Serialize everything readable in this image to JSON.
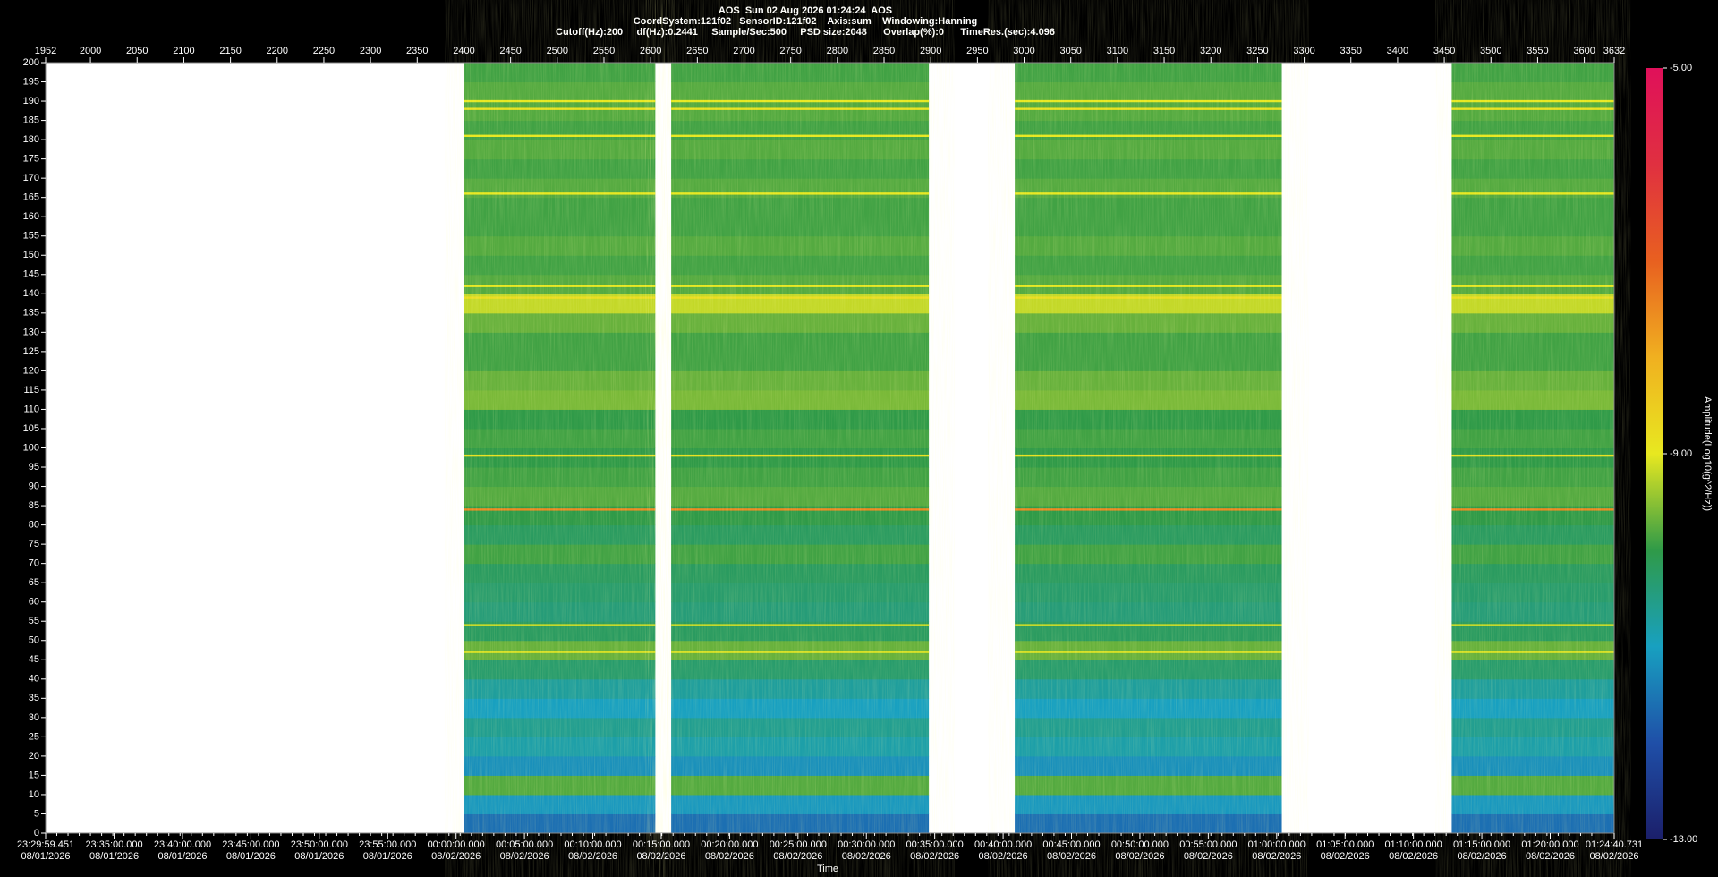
{
  "chart_data": {
    "type": "spectrogram",
    "title": "AOS  Sun 02 Aug 2026 01:24:24  AOS",
    "subtitle": "CoordSystem:121f02   SensorID:121f02    Axis:sum    Windowing:Hanning",
    "subtitle2": "Cutoff(Hz):200     df(Hz):0.2441     Sample/Sec:500     PSD size:2048      Overlap(%):0      TimeRes.(sec):4.096",
    "xlabel": "Time",
    "colorbar_label": "Amplitude(Log10(g^2/Hz))",
    "xlim": [
      1952,
      3632
    ],
    "xticks": [
      1952,
      2000,
      2050,
      2100,
      2150,
      2200,
      2250,
      2300,
      2350,
      2400,
      2450,
      2500,
      2550,
      2600,
      2650,
      2700,
      2750,
      2800,
      2850,
      2900,
      2950,
      3000,
      3050,
      3100,
      3150,
      3200,
      3250,
      3300,
      3350,
      3400,
      3450,
      3500,
      3550,
      3600,
      3632
    ],
    "time_ticks": [
      {
        "value": 1952,
        "label": "23:29:59.451",
        "date": "08/01/2026"
      },
      {
        "value": 2025.38,
        "label": "23:35:00.000",
        "date": "08/01/2026"
      },
      {
        "value": 2098.62,
        "label": "23:40:00.000",
        "date": "08/01/2026"
      },
      {
        "value": 2171.86,
        "label": "23:45:00.000",
        "date": "08/01/2026"
      },
      {
        "value": 2245.1,
        "label": "23:50:00.000",
        "date": "08/01/2026"
      },
      {
        "value": 2318.35,
        "label": "23:55:00.000",
        "date": "08/01/2026"
      },
      {
        "value": 2391.59,
        "label": "00:00:00.000",
        "date": "08/02/2026"
      },
      {
        "value": 2464.83,
        "label": "00:05:00.000",
        "date": "08/02/2026"
      },
      {
        "value": 2538.07,
        "label": "00:10:00.000",
        "date": "08/02/2026"
      },
      {
        "value": 2611.32,
        "label": "00:15:00.000",
        "date": "08/02/2026"
      },
      {
        "value": 2684.56,
        "label": "00:20:00.000",
        "date": "08/02/2026"
      },
      {
        "value": 2757.8,
        "label": "00:25:00.000",
        "date": "08/02/2026"
      },
      {
        "value": 2831.04,
        "label": "00:30:00.000",
        "date": "08/02/2026"
      },
      {
        "value": 2904.28,
        "label": "00:35:00.000",
        "date": "08/02/2026"
      },
      {
        "value": 2977.53,
        "label": "00:40:00.000",
        "date": "08/02/2026"
      },
      {
        "value": 3050.77,
        "label": "00:45:00.000",
        "date": "08/02/2026"
      },
      {
        "value": 3124.01,
        "label": "00:50:00.000",
        "date": "08/02/2026"
      },
      {
        "value": 3197.25,
        "label": "00:55:00.000",
        "date": "08/02/2026"
      },
      {
        "value": 3270.5,
        "label": "01:00:00.000",
        "date": "08/02/2026"
      },
      {
        "value": 3343.74,
        "label": "01:05:00.000",
        "date": "08/02/2026"
      },
      {
        "value": 3416.98,
        "label": "01:10:00.000",
        "date": "08/02/2026"
      },
      {
        "value": 3490.22,
        "label": "01:15:00.000",
        "date": "08/02/2026"
      },
      {
        "value": 3563.47,
        "label": "01:20:00.000",
        "date": "08/02/2026"
      },
      {
        "value": 3632,
        "label": "01:24:40.731",
        "date": "08/02/2026"
      }
    ],
    "ylim": [
      0,
      200
    ],
    "yticks": [
      0,
      5,
      10,
      15,
      20,
      25,
      30,
      35,
      40,
      45,
      50,
      55,
      60,
      65,
      70,
      75,
      80,
      85,
      90,
      95,
      100,
      105,
      110,
      115,
      120,
      125,
      130,
      135,
      140,
      145,
      150,
      155,
      160,
      165,
      170,
      175,
      180,
      185,
      190,
      195,
      200
    ],
    "clim": [
      -13,
      -5
    ],
    "cticks": [
      {
        "value": -13,
        "label": "-13.00"
      },
      {
        "value": -9,
        "label": "-9.00"
      },
      {
        "value": -5,
        "label": "-5.00"
      }
    ],
    "colormap": [
      "#1b1f6a",
      "#1f4fa8",
      "#18a0c0",
      "#2f9a48",
      "#e8e820",
      "#f0b020",
      "#e86020",
      "#e03040",
      "#e0105a"
    ],
    "segments": [
      [
        2400,
        2605
      ],
      [
        2622,
        2898
      ],
      [
        2990,
        3276
      ],
      [
        3458,
        3632
      ]
    ],
    "bins": [
      0,
      5,
      10,
      15,
      20,
      25,
      30,
      35,
      40,
      45,
      50,
      55,
      60,
      65,
      70,
      75,
      80,
      85,
      90,
      95,
      100,
      105,
      110,
      115,
      120,
      125,
      130,
      135,
      140,
      145,
      150,
      155,
      160,
      165,
      170,
      175,
      180,
      185,
      190,
      195,
      200
    ],
    "amplitude": [
      -11.6,
      -11.1,
      -9.8,
      -11.2,
      -10.8,
      -10.6,
      -11.0,
      -10.7,
      -10.3,
      -9.7,
      -10.2,
      -10.4,
      -10.3,
      -10.2,
      -9.9,
      -10.2,
      -10.0,
      -9.8,
      -9.9,
      -10.0,
      -9.9,
      -10.0,
      -9.6,
      -9.7,
      -9.9,
      -9.9,
      -9.7,
      -9.2,
      -9.8,
      -9.9,
      -9.8,
      -9.9,
      -9.9,
      -9.8,
      -9.9,
      -9.8,
      -9.9,
      -9.8,
      -9.8,
      -9.9
    ],
    "tonal_lines": {
      "freqs": [
        47,
        54,
        84,
        98,
        139,
        142,
        166,
        181,
        188,
        190
      ],
      "values": [
        -9.1,
        -9.2,
        -7.5,
        -8.9,
        -8.8,
        -9.0,
        -9.0,
        -9.0,
        -8.9,
        -9.0
      ]
    }
  }
}
